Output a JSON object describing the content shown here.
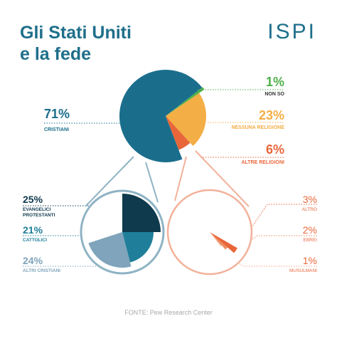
{
  "title_line1": "Gli Stati Uniti",
  "title_line2": "e la fede",
  "logo": "ISPI",
  "source": "FONTE: Pew Research Center",
  "colors": {
    "title": "#1f6f8b",
    "christian": "#1a6e8c",
    "none": "#f3ae45",
    "other": "#e8663a",
    "dont_know": "#4fb04b",
    "evangelical": "#0f3a4d",
    "catholic": "#1f7f9a",
    "other_christian": "#7fa4bb",
    "other_religions_guide": "#f2b19a",
    "christian_guide": "#8fb3c4"
  },
  "chart_data": [
    {
      "type": "pie",
      "title": "",
      "slices": [
        {
          "label": "NON SO",
          "value": 1,
          "display": "1%"
        },
        {
          "label": "NESSUNA RELIGIONE",
          "value": 23,
          "display": "23%"
        },
        {
          "label": "ALTRE RELIGIONI",
          "value": 6,
          "display": "6%"
        },
        {
          "label": "CRISTIANI",
          "value": 71,
          "display": "71%"
        }
      ]
    },
    {
      "type": "pie",
      "title": "",
      "slices": [
        {
          "label": "EVANGELICI PROTESTANTI",
          "label_line1": "EVANGELICI",
          "label_line2": "PROTESTANTI",
          "value": 25,
          "display": "25%"
        },
        {
          "label": "CATTOLICI",
          "value": 21,
          "display": "21%"
        },
        {
          "label": "ALTRI CRISTIANI",
          "value": 24,
          "display": "24%"
        }
      ]
    },
    {
      "type": "pie",
      "title": "",
      "slices": [
        {
          "label": "ALTRO",
          "value": 3,
          "display": "3%"
        },
        {
          "label": "EBREI",
          "value": 2,
          "display": "2%"
        },
        {
          "label": "MUSULMANI",
          "value": 1,
          "display": "1%"
        }
      ]
    }
  ]
}
